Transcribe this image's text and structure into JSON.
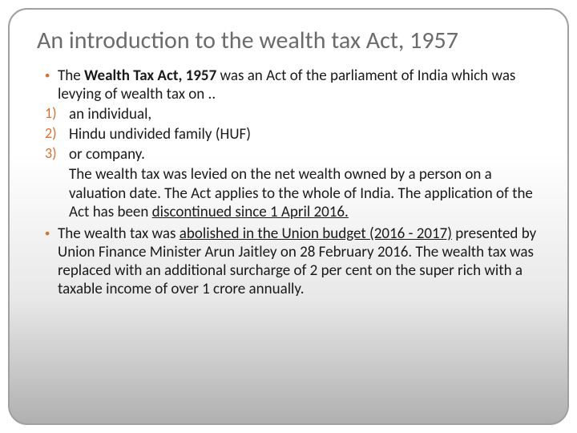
{
  "slide": {
    "title": "An introduction to the wealth tax Act, 1957",
    "background_gradient": [
      "#ffffff",
      "#ffffff",
      "#e8e8e8",
      "#b0b0b0"
    ],
    "border_color": "#a0a0a0",
    "border_radius": 24,
    "title_color": "#6b6b6b",
    "title_fontsize": 30,
    "body_color": "#1a1a1a",
    "body_fontsize": 19,
    "accent_color": "#d96f2d"
  },
  "bullets": {
    "b1_pre": "The ",
    "b1_bold": "Wealth Tax Act, 1957",
    "b1_post": " was an Act of the parliament of India which was levying of wealth tax on ..",
    "n1_marker": "1)",
    "n1_text": "an individual,",
    "n2_marker": "2)",
    "n2_text": "Hindu undivided family (HUF)",
    "n3_marker": "3)",
    "n3_text": "or company.",
    "p1_pre": "The wealth tax was levied on the net wealth owned by a person on a valuation date. The Act applies to the whole of India. The application of the Act has been ",
    "p1_u": "discontinued since 1 April 2016.",
    "b2_pre": "The wealth tax was ",
    "b2_u": "abolished in the Union budget (2016 - 2017)",
    "b2_post": " presented by Union Finance Minister Arun Jaitley on 28 February 2016. The wealth tax was replaced with an additional surcharge of 2 per cent on the super rich with a taxable income of over 1 crore annually."
  }
}
